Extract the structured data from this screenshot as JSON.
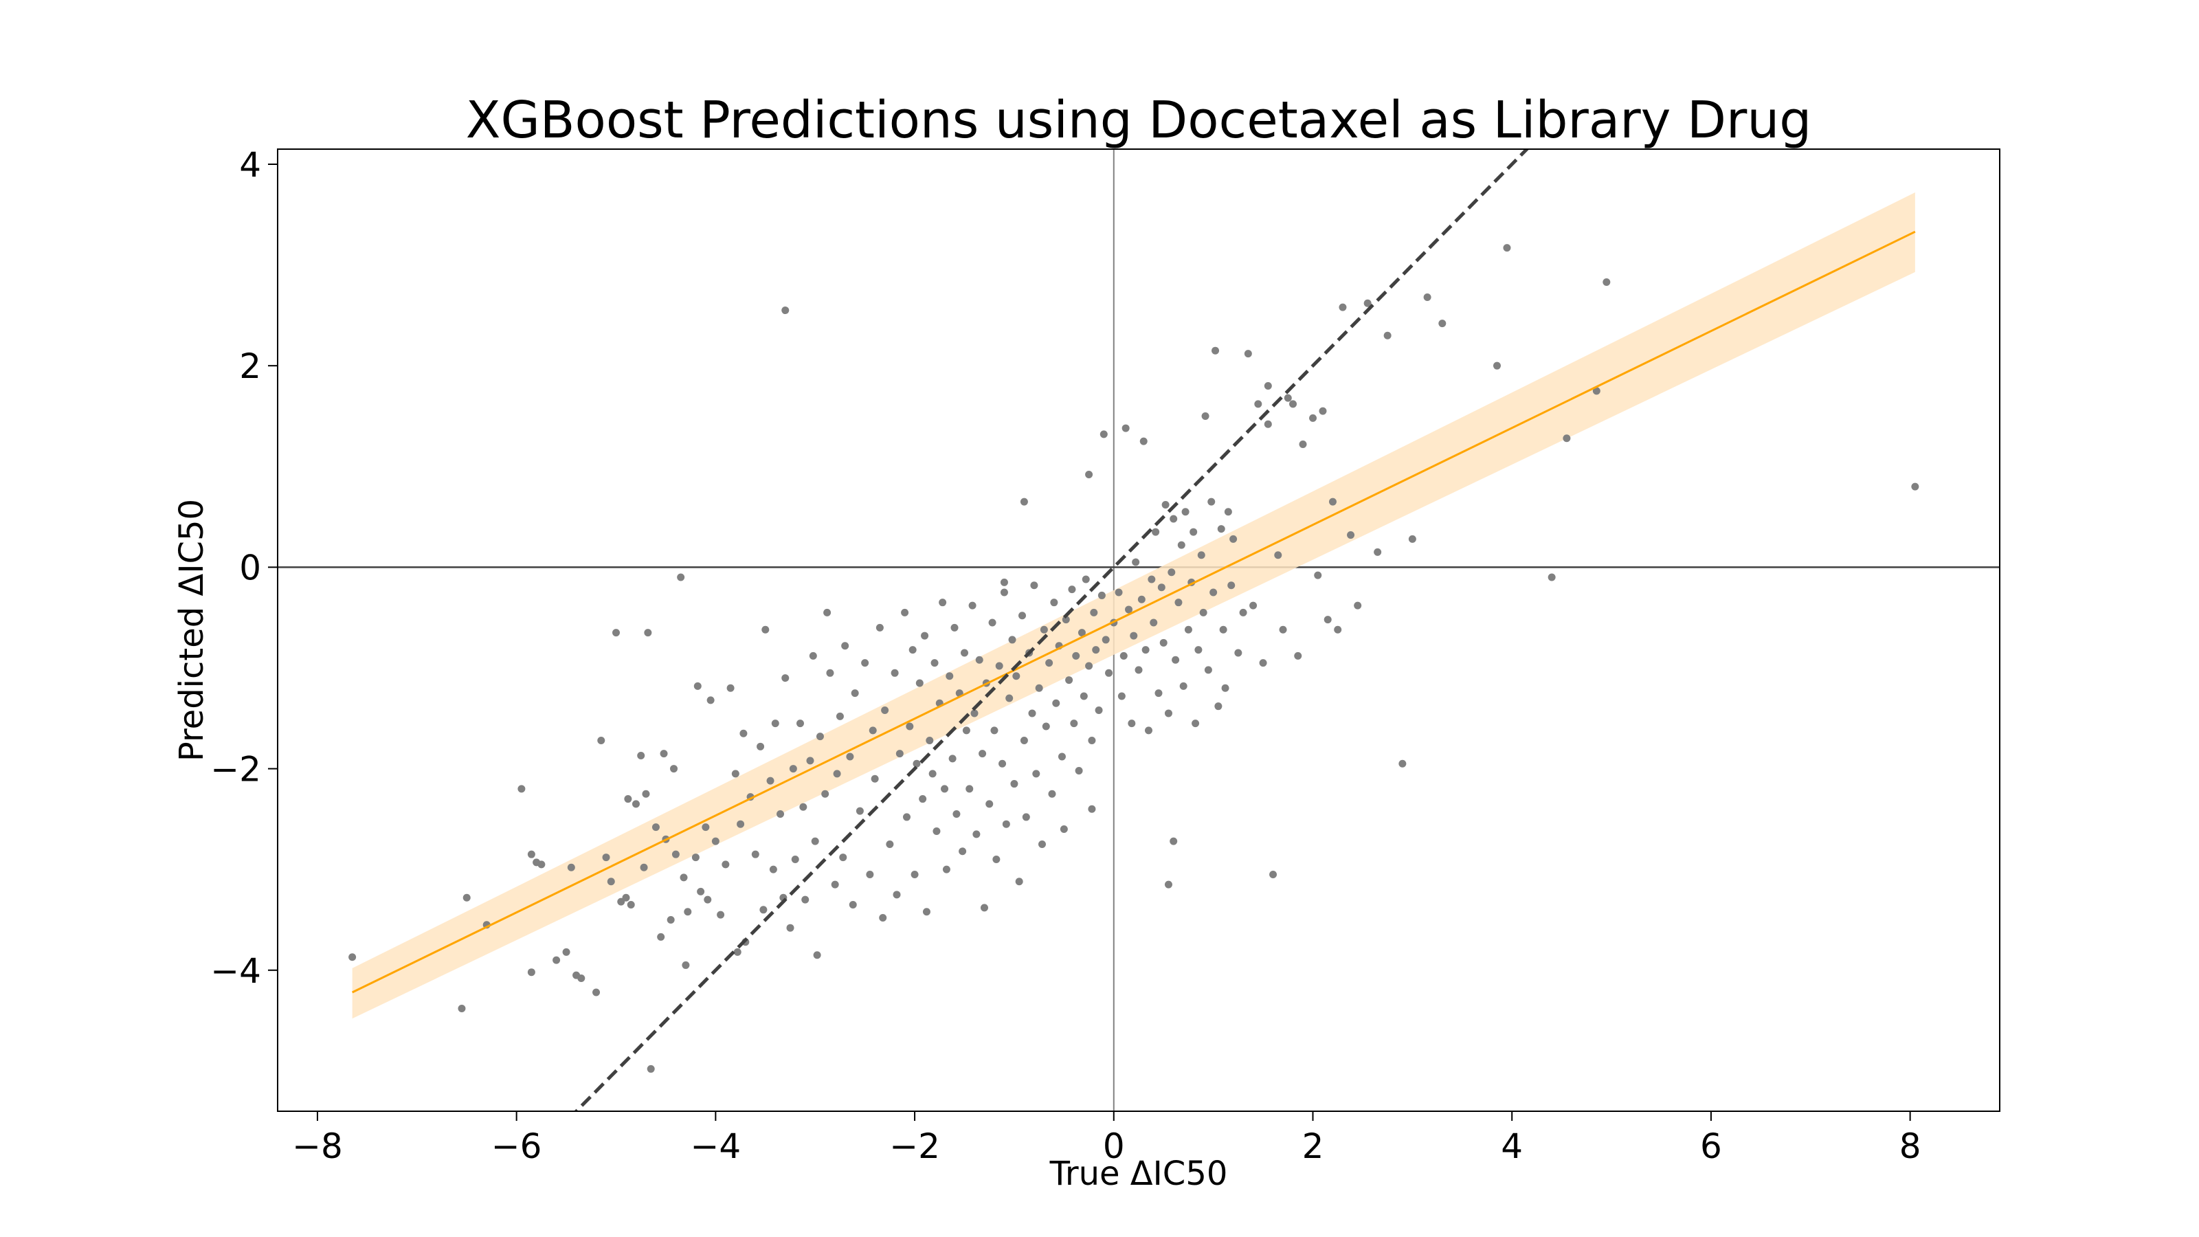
{
  "chart_data": {
    "type": "scatter",
    "title": "XGBoost Predictions using Docetaxel as Library Drug",
    "xlabel": "True ΔIC50",
    "ylabel": "Predicted ΔIC50",
    "xlim": [
      -8.4,
      8.9
    ],
    "ylim": [
      -5.4,
      4.15
    ],
    "xticks": [
      -8,
      -6,
      -4,
      -2,
      0,
      2,
      4,
      6,
      8
    ],
    "yticks": [
      -4,
      -2,
      0,
      2,
      4
    ],
    "xtick_labels": [
      "−8",
      "−6",
      "−4",
      "−2",
      "0",
      "2",
      "4",
      "6",
      "8"
    ],
    "ytick_labels": [
      "−4",
      "−2",
      "0",
      "2",
      "4"
    ],
    "grid": false,
    "zero_lines": true,
    "scatter_color": "#808080",
    "regression": {
      "color": "#FFA500",
      "band_color": "#FFE5C2",
      "x_range": [
        -7.65,
        8.05
      ],
      "line_y": [
        -4.22,
        3.33
      ],
      "upper_y": [
        -3.98,
        3.72
      ],
      "lower_y": [
        -4.48,
        2.93
      ]
    },
    "identity_line": {
      "color": "#404040",
      "style": "dashed",
      "slope": 1,
      "intercept": 0
    },
    "points": [
      [
        -7.65,
        -3.87
      ],
      [
        -6.55,
        -4.38
      ],
      [
        -6.5,
        -3.28
      ],
      [
        -6.3,
        -3.55
      ],
      [
        -5.95,
        -2.2
      ],
      [
        -5.85,
        -2.85
      ],
      [
        -5.8,
        -2.93
      ],
      [
        -5.85,
        -4.02
      ],
      [
        -5.75,
        -2.95
      ],
      [
        -5.6,
        -3.9
      ],
      [
        -5.5,
        -3.82
      ],
      [
        -5.45,
        -2.98
      ],
      [
        -5.4,
        -4.05
      ],
      [
        -5.35,
        -4.08
      ],
      [
        -5.2,
        -4.22
      ],
      [
        -5.15,
        -1.72
      ],
      [
        -5.1,
        -2.88
      ],
      [
        -5.05,
        -3.12
      ],
      [
        -5.0,
        -0.65
      ],
      [
        -4.95,
        -3.32
      ],
      [
        -4.9,
        -3.28
      ],
      [
        -4.88,
        -2.3
      ],
      [
        -4.85,
        -3.35
      ],
      [
        -4.8,
        -2.35
      ],
      [
        -4.75,
        -1.87
      ],
      [
        -4.72,
        -2.98
      ],
      [
        -4.7,
        -2.25
      ],
      [
        -4.68,
        -0.65
      ],
      [
        -4.65,
        -4.98
      ],
      [
        -4.6,
        -2.58
      ],
      [
        -4.55,
        -3.67
      ],
      [
        -4.52,
        -1.85
      ],
      [
        -4.5,
        -2.7
      ],
      [
        -4.45,
        -3.5
      ],
      [
        -4.42,
        -2.0
      ],
      [
        -4.4,
        -2.85
      ],
      [
        -4.35,
        -0.1
      ],
      [
        -4.32,
        -3.08
      ],
      [
        -4.3,
        -3.95
      ],
      [
        -4.28,
        -3.42
      ],
      [
        -4.2,
        -2.88
      ],
      [
        -4.18,
        -1.18
      ],
      [
        -4.15,
        -3.22
      ],
      [
        -4.1,
        -2.58
      ],
      [
        -4.08,
        -3.3
      ],
      [
        -4.05,
        -1.32
      ],
      [
        -4.0,
        -2.72
      ],
      [
        -3.95,
        -3.45
      ],
      [
        -3.9,
        -2.95
      ],
      [
        -3.85,
        -1.2
      ],
      [
        -3.8,
        -2.05
      ],
      [
        -3.78,
        -3.82
      ],
      [
        -3.75,
        -2.55
      ],
      [
        -3.72,
        -1.65
      ],
      [
        -3.7,
        -3.72
      ],
      [
        -3.65,
        -2.28
      ],
      [
        -3.6,
        -2.85
      ],
      [
        -3.55,
        -1.78
      ],
      [
        -3.52,
        -3.4
      ],
      [
        -3.5,
        -0.62
      ],
      [
        -3.45,
        -2.12
      ],
      [
        -3.42,
        -3.0
      ],
      [
        -3.4,
        -1.55
      ],
      [
        -3.35,
        -2.45
      ],
      [
        -3.32,
        -3.28
      ],
      [
        -3.3,
        -1.1
      ],
      [
        -3.25,
        -3.58
      ],
      [
        -3.22,
        -2.0
      ],
      [
        -3.2,
        -2.9
      ],
      [
        -3.15,
        -1.55
      ],
      [
        -3.12,
        -2.38
      ],
      [
        -3.1,
        -3.3
      ],
      [
        -3.05,
        -1.92
      ],
      [
        -3.02,
        -0.88
      ],
      [
        -3.0,
        -2.72
      ],
      [
        -2.98,
        -3.85
      ],
      [
        -2.95,
        -1.68
      ],
      [
        -2.9,
        -2.25
      ],
      [
        -2.88,
        -0.45
      ],
      [
        -2.85,
        -1.05
      ],
      [
        -2.8,
        -3.15
      ],
      [
        -2.78,
        -2.05
      ],
      [
        -2.75,
        -1.48
      ],
      [
        -2.72,
        -2.88
      ],
      [
        -2.7,
        -0.78
      ],
      [
        -2.65,
        -1.88
      ],
      [
        -2.62,
        -3.35
      ],
      [
        -2.6,
        -1.25
      ],
      [
        -2.55,
        -2.42
      ],
      [
        -2.5,
        -0.95
      ],
      [
        -2.45,
        -3.05
      ],
      [
        -2.42,
        -1.62
      ],
      [
        -2.4,
        -2.1
      ],
      [
        -2.35,
        -0.6
      ],
      [
        -2.32,
        -3.48
      ],
      [
        -2.3,
        -1.42
      ],
      [
        -2.25,
        -2.75
      ],
      [
        -2.2,
        -1.05
      ],
      [
        -2.18,
        -3.25
      ],
      [
        -2.15,
        -1.85
      ],
      [
        -2.1,
        -0.45
      ],
      [
        -2.08,
        -2.48
      ],
      [
        -2.05,
        -1.58
      ],
      [
        -2.02,
        -0.82
      ],
      [
        -2.0,
        -3.05
      ],
      [
        -1.98,
        -1.95
      ],
      [
        -1.95,
        -1.15
      ],
      [
        -1.92,
        -2.3
      ],
      [
        -1.9,
        -0.68
      ],
      [
        -1.88,
        -3.42
      ],
      [
        -1.85,
        -1.72
      ],
      [
        -1.82,
        -2.05
      ],
      [
        -1.8,
        -0.95
      ],
      [
        -1.78,
        -2.62
      ],
      [
        -1.75,
        -1.35
      ],
      [
        -1.72,
        -0.35
      ],
      [
        -1.7,
        -2.2
      ],
      [
        -1.68,
        -3.0
      ],
      [
        -1.65,
        -1.08
      ],
      [
        -1.62,
        -1.9
      ],
      [
        -1.6,
        -0.6
      ],
      [
        -1.58,
        -2.45
      ],
      [
        -1.55,
        -1.25
      ],
      [
        -1.52,
        -2.82
      ],
      [
        -1.5,
        -0.85
      ],
      [
        -1.48,
        -1.62
      ],
      [
        -1.45,
        -2.2
      ],
      [
        -1.42,
        -0.38
      ],
      [
        -1.4,
        -1.45
      ],
      [
        -1.38,
        -2.65
      ],
      [
        -1.35,
        -0.92
      ],
      [
        -1.32,
        -1.85
      ],
      [
        -1.3,
        -3.38
      ],
      [
        -1.28,
        -1.15
      ],
      [
        -1.25,
        -2.35
      ],
      [
        -1.22,
        -0.55
      ],
      [
        -1.2,
        -1.62
      ],
      [
        -1.18,
        -2.9
      ],
      [
        -1.15,
        -0.98
      ],
      [
        -1.12,
        -1.95
      ],
      [
        -1.1,
        -0.25
      ],
      [
        -1.08,
        -2.55
      ],
      [
        -1.05,
        -1.3
      ],
      [
        -1.02,
        -0.72
      ],
      [
        -1.0,
        -2.15
      ],
      [
        -0.98,
        -1.08
      ],
      [
        -0.95,
        -3.12
      ],
      [
        -0.92,
        -0.48
      ],
      [
        -0.9,
        -1.72
      ],
      [
        -0.88,
        -2.48
      ],
      [
        -0.85,
        -0.85
      ],
      [
        -0.82,
        -1.45
      ],
      [
        -0.8,
        -0.18
      ],
      [
        -0.78,
        -2.05
      ],
      [
        -0.75,
        -1.2
      ],
      [
        -0.72,
        -2.75
      ],
      [
        -0.7,
        -0.62
      ],
      [
        -0.68,
        -1.58
      ],
      [
        -0.65,
        -0.95
      ],
      [
        -0.62,
        -2.25
      ],
      [
        -0.6,
        -0.35
      ],
      [
        -0.58,
        -1.35
      ],
      [
        -0.55,
        -0.78
      ],
      [
        -0.52,
        -1.88
      ],
      [
        -0.5,
        -2.6
      ],
      [
        -0.48,
        -0.52
      ],
      [
        -0.45,
        -1.12
      ],
      [
        -0.42,
        -0.22
      ],
      [
        -0.4,
        -1.55
      ],
      [
        -0.38,
        -0.88
      ],
      [
        -0.35,
        -2.02
      ],
      [
        -0.32,
        -0.65
      ],
      [
        -0.3,
        -1.28
      ],
      [
        -0.28,
        -0.12
      ],
      [
        -0.25,
        -0.98
      ],
      [
        -0.22,
        -1.72
      ],
      [
        -0.2,
        -0.45
      ],
      [
        -0.18,
        -0.82
      ],
      [
        -0.15,
        -1.42
      ],
      [
        -0.12,
        -0.28
      ],
      [
        -0.1,
        1.32
      ],
      [
        -0.08,
        -0.72
      ],
      [
        -0.05,
        -1.05
      ],
      [
        0.0,
        -0.55
      ],
      [
        0.05,
        -0.25
      ],
      [
        0.08,
        -1.28
      ],
      [
        0.1,
        -0.88
      ],
      [
        0.12,
        1.38
      ],
      [
        0.15,
        -0.42
      ],
      [
        0.18,
        -1.55
      ],
      [
        0.2,
        -0.68
      ],
      [
        0.22,
        0.05
      ],
      [
        0.25,
        -1.02
      ],
      [
        0.28,
        -0.32
      ],
      [
        0.3,
        1.25
      ],
      [
        0.32,
        -0.82
      ],
      [
        0.35,
        -1.62
      ],
      [
        0.38,
        -0.12
      ],
      [
        0.4,
        -0.55
      ],
      [
        0.42,
        0.35
      ],
      [
        0.45,
        -1.25
      ],
      [
        0.48,
        -0.2
      ],
      [
        0.5,
        -0.75
      ],
      [
        0.52,
        0.62
      ],
      [
        0.55,
        -1.45
      ],
      [
        0.58,
        -0.05
      ],
      [
        0.6,
        0.48
      ],
      [
        0.62,
        -0.92
      ],
      [
        0.65,
        -0.35
      ],
      [
        0.68,
        0.22
      ],
      [
        0.7,
        -1.18
      ],
      [
        0.72,
        0.55
      ],
      [
        0.75,
        -0.62
      ],
      [
        0.78,
        -0.15
      ],
      [
        0.8,
        0.35
      ],
      [
        0.82,
        -1.55
      ],
      [
        0.85,
        -0.82
      ],
      [
        0.88,
        0.12
      ],
      [
        0.9,
        -0.45
      ],
      [
        0.92,
        1.5
      ],
      [
        0.95,
        -1.02
      ],
      [
        0.98,
        0.65
      ],
      [
        1.0,
        -0.25
      ],
      [
        1.02,
        2.15
      ],
      [
        1.05,
        -1.38
      ],
      [
        1.08,
        0.38
      ],
      [
        1.1,
        -0.62
      ],
      [
        1.12,
        -1.2
      ],
      [
        1.15,
        0.55
      ],
      [
        1.18,
        -0.18
      ],
      [
        1.2,
        0.28
      ],
      [
        1.25,
        -0.85
      ],
      [
        1.3,
        -0.45
      ],
      [
        1.35,
        2.12
      ],
      [
        1.4,
        -0.38
      ],
      [
        1.45,
        1.62
      ],
      [
        1.5,
        -0.95
      ],
      [
        1.55,
        1.8
      ],
      [
        1.6,
        -3.05
      ],
      [
        1.65,
        0.12
      ],
      [
        1.7,
        -0.62
      ],
      [
        1.75,
        1.68
      ],
      [
        1.8,
        1.62
      ],
      [
        1.85,
        -0.88
      ],
      [
        1.9,
        1.22
      ],
      [
        2.0,
        1.48
      ],
      [
        2.05,
        -0.08
      ],
      [
        2.1,
        1.55
      ],
      [
        2.15,
        -0.52
      ],
      [
        2.2,
        0.65
      ],
      [
        2.25,
        -0.62
      ],
      [
        2.3,
        2.58
      ],
      [
        2.38,
        0.32
      ],
      [
        2.45,
        -0.38
      ],
      [
        2.55,
        2.62
      ],
      [
        2.65,
        0.15
      ],
      [
        2.75,
        2.3
      ],
      [
        2.9,
        -1.95
      ],
      [
        3.0,
        0.28
      ],
      [
        3.15,
        2.68
      ],
      [
        3.3,
        2.42
      ],
      [
        3.95,
        3.17
      ],
      [
        4.4,
        -0.1
      ],
      [
        4.55,
        1.28
      ],
      [
        4.85,
        1.75
      ],
      [
        4.95,
        2.83
      ],
      [
        8.05,
        0.8
      ],
      [
        3.85,
        2.0
      ],
      [
        -3.3,
        2.55
      ],
      [
        -1.1,
        -0.15
      ],
      [
        -0.9,
        0.65
      ],
      [
        -0.25,
        0.92
      ],
      [
        -0.22,
        -2.4
      ],
      [
        0.55,
        -3.15
      ],
      [
        0.6,
        -2.72
      ],
      [
        1.55,
        1.42
      ]
    ]
  }
}
